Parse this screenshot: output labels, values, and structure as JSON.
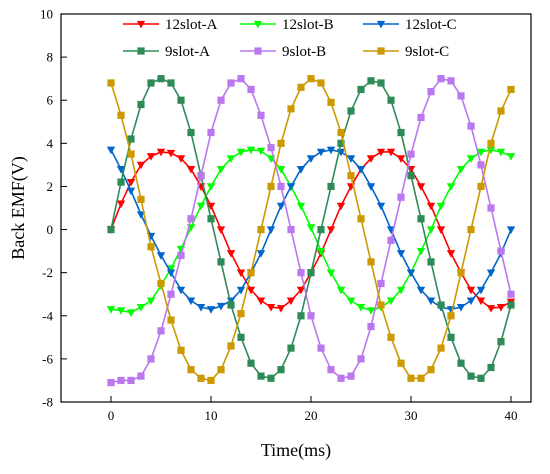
{
  "chart_data": {
    "type": "line",
    "xlabel": "Time(ms)",
    "ylabel": "Back EMF(V)",
    "xlim": [
      -5,
      42
    ],
    "ylim": [
      -8,
      10
    ],
    "xticks": [
      0,
      10,
      20,
      30,
      40
    ],
    "yticks": [
      -8,
      -6,
      -4,
      -2,
      0,
      2,
      4,
      6,
      8,
      10
    ],
    "legend_position": "top",
    "x": [
      0,
      1,
      2,
      3,
      4,
      5,
      6,
      7,
      8,
      9,
      10,
      11,
      12,
      13,
      14,
      15,
      16,
      17,
      18,
      19,
      20,
      21,
      22,
      23,
      24,
      25,
      26,
      27,
      28,
      29,
      30,
      31,
      32,
      33,
      34,
      35,
      36,
      37,
      38,
      39,
      40
    ],
    "series": [
      {
        "name": "12slot-A",
        "color": "#ff0000",
        "marker": "triangle-down",
        "values": [
          0,
          1.2,
          2.2,
          3.0,
          3.4,
          3.6,
          3.55,
          3.3,
          2.8,
          2.0,
          1.1,
          0.0,
          -1.1,
          -2.0,
          -2.8,
          -3.3,
          -3.6,
          -3.65,
          -3.3,
          -2.8,
          -2.0,
          -1.1,
          0.0,
          1.1,
          2.0,
          2.8,
          3.3,
          3.6,
          3.6,
          3.3,
          2.8,
          2.0,
          1.1,
          0.0,
          -1.1,
          -2.0,
          -2.8,
          -3.3,
          -3.65,
          -3.6,
          -3.35
        ]
      },
      {
        "name": "12slot-B",
        "color": "#00ff00",
        "marker": "triangle-down",
        "values": [
          -3.7,
          -3.75,
          -3.85,
          -3.6,
          -3.3,
          -2.6,
          -1.8,
          -0.9,
          0.1,
          1.1,
          2.0,
          2.8,
          3.3,
          3.6,
          3.7,
          3.65,
          3.3,
          2.8,
          2.0,
          1.1,
          0.1,
          -1.0,
          -2.0,
          -2.8,
          -3.3,
          -3.6,
          -3.75,
          -3.6,
          -3.3,
          -2.8,
          -2.0,
          -1.0,
          0.0,
          1.1,
          2.0,
          2.8,
          3.3,
          3.6,
          3.7,
          3.6,
          3.4
        ]
      },
      {
        "name": "12slot-C",
        "color": "#0066cc",
        "marker": "triangle-down",
        "values": [
          3.7,
          2.8,
          1.8,
          0.7,
          -0.3,
          -1.2,
          -2.0,
          -2.8,
          -3.3,
          -3.6,
          -3.7,
          -3.55,
          -3.3,
          -2.8,
          -2.0,
          -1.1,
          0.0,
          1.1,
          2.0,
          2.8,
          3.3,
          3.6,
          3.7,
          3.6,
          3.3,
          2.8,
          2.0,
          1.1,
          0.0,
          -1.1,
          -2.0,
          -2.8,
          -3.3,
          -3.6,
          -3.7,
          -3.6,
          -3.3,
          -2.8,
          -2.0,
          -1.1,
          0.0
        ]
      },
      {
        "name": "9slot-A",
        "color": "#2e8b57",
        "marker": "square",
        "values": [
          0,
          2.2,
          4.2,
          5.8,
          6.8,
          7.0,
          6.8,
          6.0,
          4.5,
          2.5,
          0.5,
          -1.5,
          -3.5,
          -5.0,
          -6.2,
          -6.8,
          -6.9,
          -6.5,
          -5.5,
          -4.0,
          -2.0,
          0.0,
          2.0,
          4.0,
          5.5,
          6.5,
          6.9,
          6.8,
          6.0,
          4.5,
          2.5,
          0.5,
          -1.5,
          -3.5,
          -5.0,
          -6.2,
          -6.8,
          -6.9,
          -6.4,
          -5.2,
          -3.5
        ]
      },
      {
        "name": "9slot-B",
        "color": "#bb77ee",
        "marker": "square",
        "values": [
          -7.1,
          -7.0,
          -7.0,
          -6.8,
          -6.0,
          -4.7,
          -3.0,
          -1.2,
          0.5,
          2.5,
          4.5,
          6.0,
          6.8,
          7.0,
          6.5,
          5.3,
          3.8,
          2.0,
          0.0,
          -2.0,
          -4.0,
          -5.5,
          -6.5,
          -6.9,
          -6.8,
          -6.0,
          -4.5,
          -2.5,
          -0.5,
          1.5,
          3.5,
          5.2,
          6.4,
          7.0,
          6.9,
          6.2,
          4.8,
          3.0,
          1.0,
          -1.0,
          -3.0
        ]
      },
      {
        "name": "9slot-C",
        "color": "#cc9900",
        "marker": "square",
        "values": [
          6.8,
          5.3,
          3.5,
          1.4,
          -0.8,
          -2.5,
          -4.2,
          -5.6,
          -6.5,
          -6.9,
          -7.0,
          -6.5,
          -5.4,
          -3.9,
          -2.0,
          0.0,
          2.0,
          4.0,
          5.6,
          6.6,
          7.0,
          6.8,
          5.9,
          4.5,
          2.5,
          0.5,
          -1.5,
          -3.5,
          -5.0,
          -6.2,
          -6.9,
          -6.9,
          -6.5,
          -5.5,
          -4.0,
          -2.0,
          0.0,
          2.0,
          4.0,
          5.5,
          6.5
        ]
      }
    ]
  }
}
